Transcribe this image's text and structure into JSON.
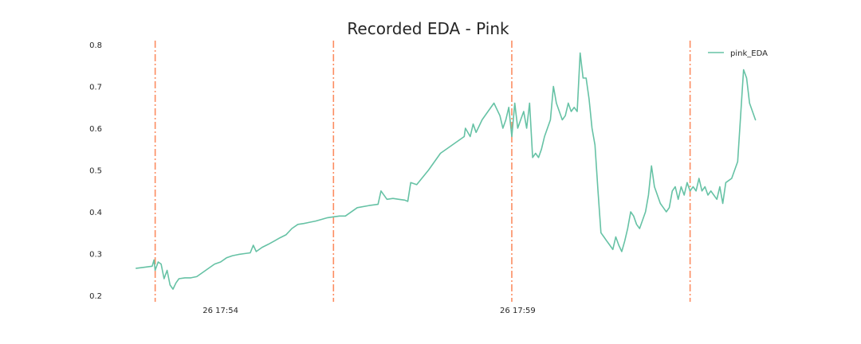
{
  "chart_data": {
    "type": "line",
    "title": "Recorded EDA - Pink",
    "xlabel": "",
    "ylabel": "",
    "x_unit": "minutes",
    "x_tick_labels": [
      {
        "x": 17.9,
        "label": "26 17:54"
      },
      {
        "x": 22.9,
        "label": "26 17:59"
      }
    ],
    "xlim": [
      16.0,
      27.2
    ],
    "ylim": [
      0.2,
      0.8
    ],
    "y_ticks": [
      0.2,
      0.3,
      0.4,
      0.5,
      0.6,
      0.7,
      0.8
    ],
    "y_tick_labels": [
      "0.2",
      "0.3",
      "0.4",
      "0.5",
      "0.6",
      "0.7",
      "0.8"
    ],
    "grid": false,
    "legend_position": "top-right",
    "markers": {
      "style": "dash-dot",
      "color": "#fc8d62",
      "x": [
        16.8,
        19.8,
        22.8,
        25.8
      ]
    },
    "series": [
      {
        "name": "pink_EDA",
        "color": "#66c2a5",
        "x": [
          16.48,
          16.6,
          16.75,
          16.78,
          16.8,
          16.85,
          16.9,
          16.95,
          17.0,
          17.05,
          17.1,
          17.15,
          17.2,
          17.3,
          17.4,
          17.5,
          17.6,
          17.65,
          17.7,
          17.8,
          17.9,
          18.0,
          18.1,
          18.2,
          18.3,
          18.4,
          18.45,
          18.5,
          18.6,
          18.7,
          18.8,
          18.9,
          19.0,
          19.1,
          19.2,
          19.3,
          19.4,
          19.5,
          19.6,
          19.7,
          19.8,
          19.9,
          20.0,
          20.2,
          20.4,
          20.55,
          20.6,
          20.7,
          20.8,
          20.9,
          21.0,
          21.05,
          21.1,
          21.2,
          21.4,
          21.6,
          21.8,
          22.0,
          22.02,
          22.1,
          22.15,
          22.2,
          22.3,
          22.4,
          22.5,
          22.6,
          22.65,
          22.7,
          22.75,
          22.8,
          22.85,
          22.9,
          22.95,
          23.0,
          23.05,
          23.1,
          23.15,
          23.2,
          23.25,
          23.3,
          23.35,
          23.4,
          23.45,
          23.5,
          23.55,
          23.6,
          23.65,
          23.7,
          23.75,
          23.8,
          23.85,
          23.9,
          23.95,
          24.0,
          24.05,
          24.1,
          24.15,
          24.2,
          24.25,
          24.3,
          24.35,
          24.4,
          24.45,
          24.5,
          24.55,
          24.6,
          24.65,
          24.7,
          24.75,
          24.8,
          24.85,
          24.9,
          24.95,
          25.0,
          25.05,
          25.1,
          25.15,
          25.2,
          25.25,
          25.3,
          25.35,
          25.4,
          25.45,
          25.5,
          25.55,
          25.6,
          25.65,
          25.7,
          25.75,
          25.8,
          25.85,
          25.9,
          25.95,
          26.0,
          26.05,
          26.1,
          26.15,
          26.2,
          26.25,
          26.3,
          26.35,
          26.4,
          26.5,
          26.6,
          26.7,
          26.75,
          26.8,
          26.85,
          26.9
        ],
        "y": [
          0.265,
          0.267,
          0.27,
          0.285,
          0.26,
          0.28,
          0.275,
          0.24,
          0.26,
          0.225,
          0.215,
          0.23,
          0.24,
          0.242,
          0.242,
          0.245,
          0.255,
          0.26,
          0.265,
          0.275,
          0.28,
          0.29,
          0.295,
          0.298,
          0.3,
          0.302,
          0.32,
          0.305,
          0.315,
          0.322,
          0.33,
          0.338,
          0.345,
          0.36,
          0.37,
          0.372,
          0.375,
          0.378,
          0.382,
          0.386,
          0.388,
          0.39,
          0.39,
          0.41,
          0.415,
          0.418,
          0.45,
          0.43,
          0.432,
          0.43,
          0.428,
          0.425,
          0.47,
          0.465,
          0.5,
          0.54,
          0.56,
          0.58,
          0.6,
          0.58,
          0.61,
          0.59,
          0.62,
          0.64,
          0.66,
          0.63,
          0.6,
          0.62,
          0.65,
          0.58,
          0.66,
          0.6,
          0.62,
          0.64,
          0.6,
          0.66,
          0.53,
          0.54,
          0.53,
          0.55,
          0.58,
          0.6,
          0.62,
          0.7,
          0.66,
          0.64,
          0.62,
          0.63,
          0.66,
          0.64,
          0.65,
          0.64,
          0.78,
          0.72,
          0.72,
          0.67,
          0.6,
          0.56,
          0.45,
          0.35,
          0.34,
          0.33,
          0.32,
          0.31,
          0.34,
          0.32,
          0.305,
          0.33,
          0.36,
          0.4,
          0.39,
          0.37,
          0.36,
          0.38,
          0.4,
          0.44,
          0.51,
          0.46,
          0.44,
          0.42,
          0.41,
          0.4,
          0.41,
          0.45,
          0.46,
          0.43,
          0.46,
          0.44,
          0.47,
          0.45,
          0.46,
          0.45,
          0.48,
          0.45,
          0.46,
          0.44,
          0.45,
          0.44,
          0.43,
          0.46,
          0.42,
          0.47,
          0.48,
          0.52,
          0.74,
          0.72,
          0.66,
          0.64,
          0.62
        ]
      }
    ]
  }
}
